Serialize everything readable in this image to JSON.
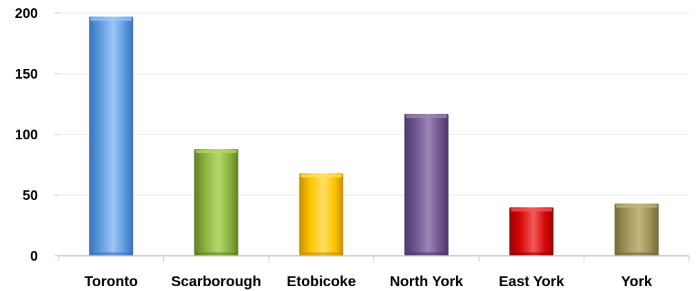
{
  "chart_data": {
    "type": "bar",
    "title": "",
    "xlabel": "",
    "ylabel": "",
    "categories": [
      "Toronto",
      "Scarborough",
      "Etobicoke",
      "North York",
      "East York",
      "York"
    ],
    "values": [
      197,
      88,
      68,
      117,
      40,
      43
    ],
    "ylim": [
      0,
      200
    ],
    "yticks": [
      "0",
      "50",
      "100",
      "150",
      "200"
    ],
    "grid": true,
    "legend": "none",
    "colors": [
      {
        "light": "#9cc6f3",
        "mid": "#5b9be0",
        "dark": "#3a73b8"
      },
      {
        "light": "#b5d86a",
        "mid": "#8bb33f",
        "dark": "#5f7f24"
      },
      {
        "light": "#ffe066",
        "mid": "#ffc400",
        "dark": "#c78f00"
      },
      {
        "light": "#9a84b8",
        "mid": "#6f558f",
        "dark": "#4c3868"
      },
      {
        "light": "#f25a5a",
        "mid": "#d70808",
        "dark": "#9a0000"
      },
      {
        "light": "#c2b67e",
        "mid": "#a09256",
        "dark": "#756937"
      }
    ]
  }
}
